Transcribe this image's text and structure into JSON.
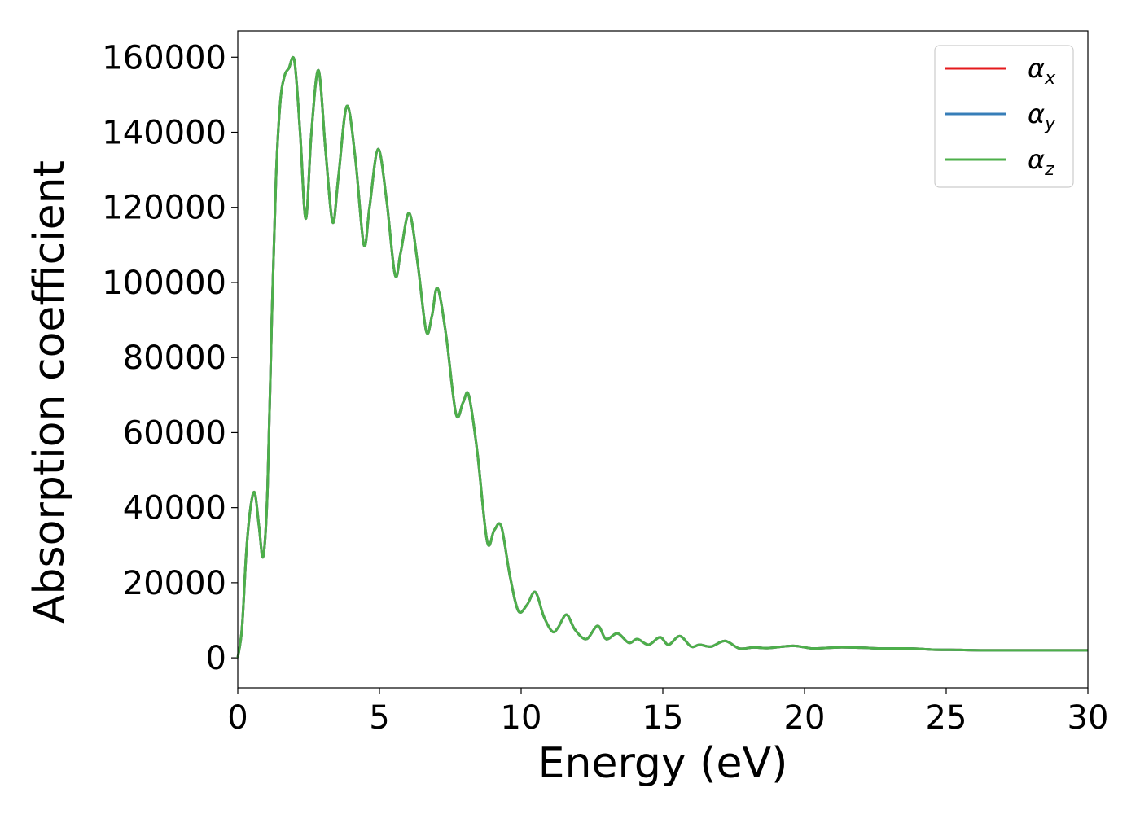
{
  "chart_data": {
    "type": "line",
    "xlabel": "Energy (eV)",
    "ylabel": "Absorption coefficient",
    "xlim": [
      0,
      30
    ],
    "ylim": [
      -8000,
      167000
    ],
    "xticks": [
      0,
      5,
      10,
      15,
      20,
      25,
      30
    ],
    "yticks": [
      0,
      20000,
      40000,
      60000,
      80000,
      100000,
      120000,
      140000,
      160000
    ],
    "grid": false,
    "legend_position": "top-right",
    "series": [
      {
        "name": "α_x",
        "symbol": "α",
        "sub": "x",
        "color": "#e41a1c"
      },
      {
        "name": "α_y",
        "symbol": "α",
        "sub": "y",
        "color": "#377eb8"
      },
      {
        "name": "α_z",
        "symbol": "α",
        "sub": "z",
        "color": "#4daf4a"
      }
    ],
    "x": [
      0,
      0.15,
      0.3,
      0.45,
      0.6,
      0.75,
      0.9,
      1.05,
      1.2,
      1.35,
      1.5,
      1.65,
      1.8,
      2.0,
      2.2,
      2.4,
      2.6,
      2.85,
      3.1,
      3.35,
      3.55,
      3.85,
      4.15,
      4.45,
      4.65,
      4.95,
      5.25,
      5.55,
      5.75,
      6.05,
      6.35,
      6.65,
      6.85,
      7.05,
      7.35,
      7.7,
      7.95,
      8.15,
      8.45,
      8.8,
      9.05,
      9.3,
      9.6,
      9.9,
      10.2,
      10.5,
      10.8,
      11.1,
      11.3,
      11.6,
      11.9,
      12.3,
      12.7,
      13.0,
      13.4,
      13.8,
      14.1,
      14.5,
      14.9,
      15.2,
      15.6,
      16.0,
      16.3,
      16.7,
      17.2,
      17.7,
      18.2,
      18.7,
      19.6,
      20.3,
      21.2,
      22.0,
      22.8,
      23.8,
      24.5,
      25.5,
      26.2,
      27.5,
      29.0,
      30.0
    ],
    "y": [
      0,
      8000,
      28000,
      40000,
      44000,
      35000,
      27000,
      45000,
      90000,
      128000,
      148000,
      155000,
      157000,
      159000,
      140000,
      117000,
      140000,
      156500,
      135000,
      116000,
      128000,
      147000,
      133000,
      110000,
      120000,
      135500,
      122000,
      102000,
      108000,
      118500,
      105000,
      87000,
      91000,
      98500,
      86000,
      65000,
      68000,
      70000,
      55000,
      31000,
      34000,
      35000,
      22000,
      12500,
      14000,
      17500,
      11000,
      7000,
      8000,
      11500,
      7500,
      5000,
      8500,
      5000,
      6500,
      4000,
      5000,
      3500,
      5500,
      3500,
      5800,
      3000,
      3500,
      3000,
      4500,
      2500,
      2800,
      2600,
      3200,
      2500,
      2800,
      2700,
      2500,
      2500,
      2200,
      2100,
      2000,
      2000,
      2000,
      2000
    ]
  }
}
